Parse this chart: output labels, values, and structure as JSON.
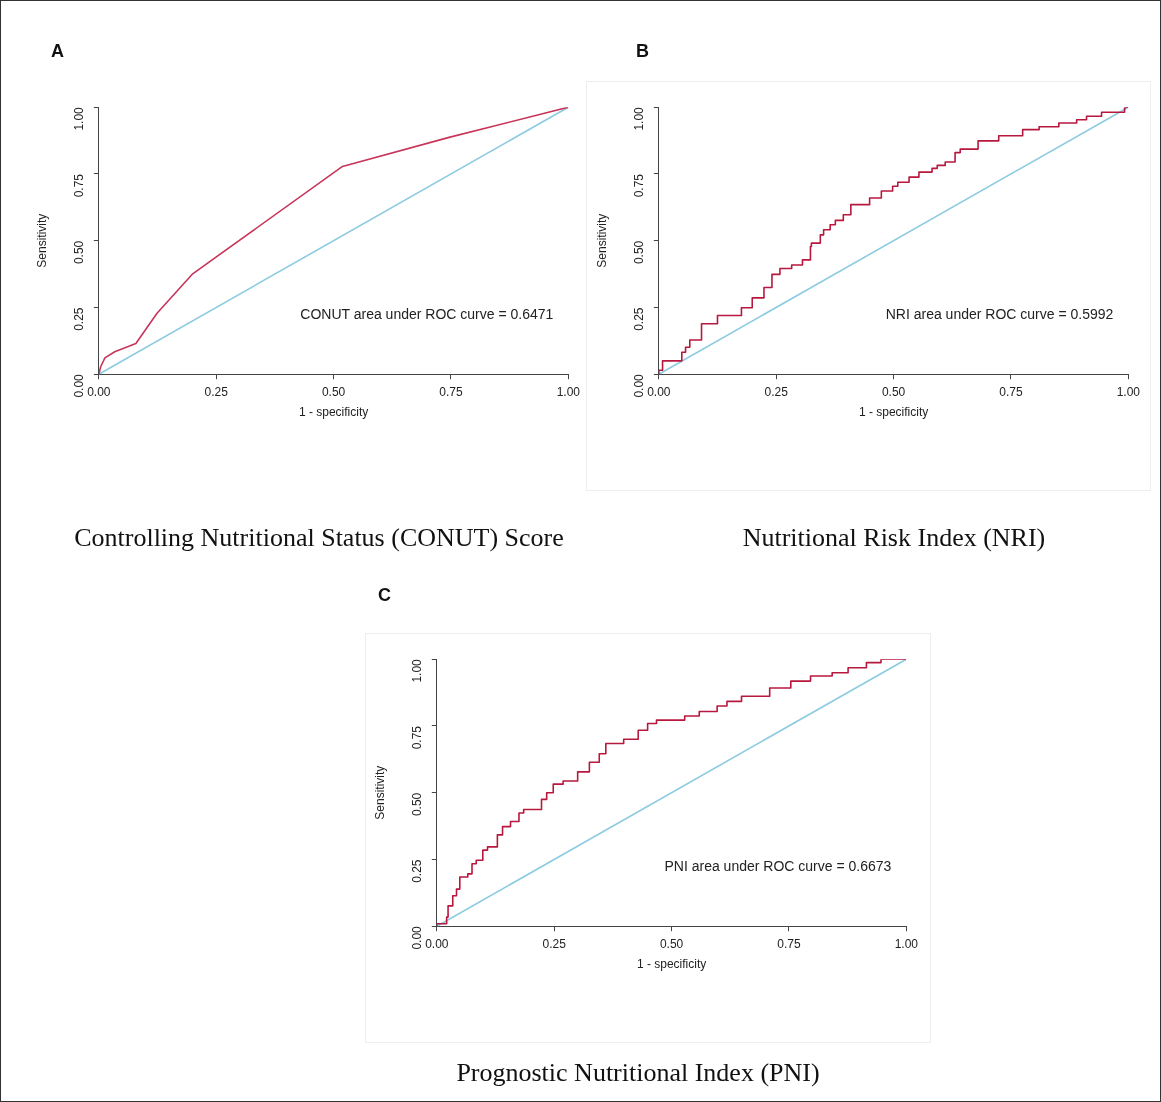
{
  "chart_data": [
    {
      "type": "line",
      "title": "Controlling Nutritional Status (CONUT) Score",
      "xlabel": "1 - specificity",
      "ylabel": "Sensitivity",
      "annotations": [
        "A",
        "CONUT area under ROC curve = 0.6471"
      ],
      "legend": false,
      "grid": false,
      "marker": "none",
      "xlim": [
        0,
        1
      ],
      "ylim": [
        0,
        1
      ],
      "xticks": [
        {
          "value": 0,
          "label": "0.00"
        },
        {
          "value": 0.25,
          "label": "0.25"
        },
        {
          "value": 0.5,
          "label": "0.50"
        },
        {
          "value": 0.75,
          "label": "0.75"
        },
        {
          "value": 1,
          "label": "1.00"
        }
      ],
      "yticks": [
        {
          "value": 0,
          "label": "0.00"
        },
        {
          "value": 0.25,
          "label": "0.25"
        },
        {
          "value": 0.5,
          "label": "0.50"
        },
        {
          "value": 0.75,
          "label": "0.75"
        },
        {
          "value": 1,
          "label": "1.00"
        }
      ],
      "series": [
        {
          "color": "#c8355a",
          "x": [
            0,
            0.004,
            0.013,
            0.034,
            0.079,
            0.124,
            0.2,
            0.519,
            0.746,
            1
          ],
          "values": [
            0,
            0.028,
            0.061,
            0.084,
            0.115,
            0.228,
            0.376,
            0.778,
            0.887,
            1
          ]
        },
        {
          "type": "line",
          "color": "#8ccbe0",
          "x": [
            0,
            1
          ],
          "values": [
            0,
            1
          ]
        }
      ]
    },
    {
      "type": "step",
      "title": "Nutritional Risk Index (NRI)",
      "xlabel": "1 - specificity",
      "ylabel": "Sensitivity",
      "annotations": [
        "B",
        "NRI area under ROC curve = 0.5992"
      ],
      "legend": false,
      "grid": false,
      "marker": "none",
      "xlim": [
        0,
        1
      ],
      "ylim": [
        0,
        1
      ],
      "xticks": [
        {
          "value": 0,
          "label": "0.00"
        },
        {
          "value": 0.25,
          "label": "0.25"
        },
        {
          "value": 0.5,
          "label": "0.50"
        },
        {
          "value": 0.75,
          "label": "0.75"
        },
        {
          "value": 1,
          "label": "1.00"
        }
      ],
      "yticks": [
        {
          "value": 0,
          "label": "0.00"
        },
        {
          "value": 0.25,
          "label": "0.25"
        },
        {
          "value": 0.5,
          "label": "0.50"
        },
        {
          "value": 0.75,
          "label": "0.75"
        },
        {
          "value": 1,
          "label": "1.00"
        }
      ],
      "series": [
        {
          "color": "#b8183e",
          "x": [
            0,
            0.008,
            0.049,
            0.057,
            0.066,
            0.091,
            0.125,
            0.176,
            0.199,
            0.224,
            0.241,
            0.258,
            0.283,
            0.306,
            0.323,
            0.325,
            0.344,
            0.351,
            0.365,
            0.376,
            0.393,
            0.409,
            0.449,
            0.474,
            0.498,
            0.509,
            0.533,
            0.554,
            0.582,
            0.593,
            0.61,
            0.631,
            0.642,
            0.68,
            0.724,
            0.775,
            0.81,
            0.852,
            0.89,
            0.911,
            0.943,
            0.992,
            0.993,
            1
          ],
          "values": [
            0,
            0.015,
            0.05,
            0.082,
            0.101,
            0.128,
            0.189,
            0.22,
            0.249,
            0.286,
            0.325,
            0.374,
            0.396,
            0.409,
            0.428,
            0.478,
            0.491,
            0.522,
            0.541,
            0.56,
            0.576,
            0.597,
            0.635,
            0.66,
            0.686,
            0.704,
            0.719,
            0.738,
            0.757,
            0.771,
            0.782,
            0.795,
            0.83,
            0.843,
            0.874,
            0.893,
            0.916,
            0.927,
            0.941,
            0.953,
            0.966,
            0.981,
            0.996,
            1
          ]
        },
        {
          "type": "line",
          "color": "#8ccbe0",
          "x": [
            0,
            1
          ],
          "values": [
            0,
            1
          ]
        }
      ]
    },
    {
      "type": "step",
      "title": "Prognostic Nutritional Index (PNI)",
      "xlabel": "1 - specificity",
      "ylabel": "Sensitivity",
      "annotations": [
        "C",
        "PNI area under ROC curve = 0.6673"
      ],
      "legend": false,
      "grid": false,
      "marker": "none",
      "xlim": [
        0,
        1
      ],
      "ylim": [
        0,
        1
      ],
      "xticks": [
        {
          "value": 0,
          "label": "0.00"
        },
        {
          "value": 0.25,
          "label": "0.25"
        },
        {
          "value": 0.5,
          "label": "0.50"
        },
        {
          "value": 0.75,
          "label": "0.75"
        },
        {
          "value": 1,
          "label": "1.00"
        }
      ],
      "yticks": [
        {
          "value": 0,
          "label": "0.00"
        },
        {
          "value": 0.25,
          "label": "0.25"
        },
        {
          "value": 0.5,
          "label": "0.50"
        },
        {
          "value": 0.75,
          "label": "0.75"
        },
        {
          "value": 1,
          "label": "1.00"
        }
      ],
      "series": [
        {
          "color": "#b8183e",
          "x": [
            0,
            0.021,
            0.024,
            0.034,
            0.042,
            0.049,
            0.066,
            0.075,
            0.084,
            0.098,
            0.108,
            0.129,
            0.14,
            0.157,
            0.175,
            0.185,
            0.223,
            0.234,
            0.248,
            0.269,
            0.3,
            0.325,
            0.346,
            0.36,
            0.398,
            0.429,
            0.449,
            0.468,
            0.528,
            0.559,
            0.597,
            0.618,
            0.649,
            0.709,
            0.754,
            0.796,
            0.842,
            0.876,
            0.915,
            0.946,
            0.999,
            1
          ],
          "values": [
            0,
            0.009,
            0.034,
            0.076,
            0.114,
            0.139,
            0.184,
            0.196,
            0.234,
            0.247,
            0.285,
            0.297,
            0.342,
            0.373,
            0.392,
            0.424,
            0.437,
            0.475,
            0.5,
            0.532,
            0.544,
            0.578,
            0.614,
            0.646,
            0.684,
            0.7,
            0.734,
            0.759,
            0.772,
            0.787,
            0.804,
            0.825,
            0.842,
            0.861,
            0.892,
            0.918,
            0.937,
            0.949,
            0.968,
            0.987,
            1,
            1
          ]
        },
        {
          "type": "line",
          "color": "#8ccbe0",
          "x": [
            0,
            1
          ],
          "values": [
            0,
            1
          ]
        }
      ]
    }
  ]
}
